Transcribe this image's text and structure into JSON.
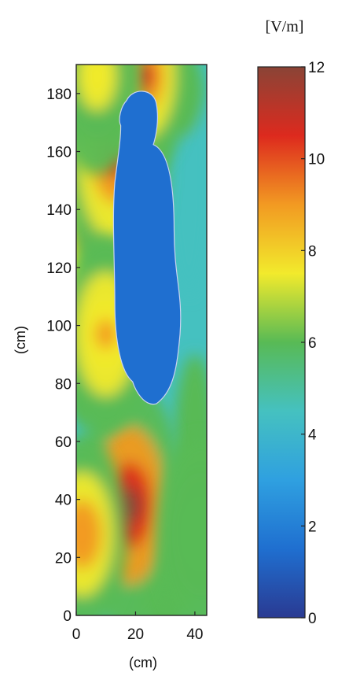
{
  "chart_data": {
    "type": "heatmap",
    "xlabel": "(cm)",
    "ylabel": "(cm)",
    "xlim": [
      0,
      44
    ],
    "ylim": [
      0,
      190
    ],
    "x_ticks": [
      0,
      20,
      40
    ],
    "y_ticks": [
      0,
      20,
      40,
      60,
      80,
      100,
      120,
      140,
      160,
      180
    ],
    "colorbar": {
      "label": "[V/m]",
      "range": [
        0,
        12
      ],
      "ticks": [
        0,
        2,
        4,
        6,
        8,
        10,
        12
      ]
    },
    "field_features": [
      {
        "kind": "peak",
        "x": 18,
        "y": 38,
        "value": 11.5
      },
      {
        "kind": "peak",
        "x": 2,
        "y": 28,
        "value": 9.5
      },
      {
        "kind": "peak",
        "x": 4,
        "y": 130,
        "value": 9
      },
      {
        "kind": "peak",
        "x": 13,
        "y": 157,
        "value": 10.5
      },
      {
        "kind": "peak",
        "x": 23,
        "y": 186,
        "value": 10
      },
      {
        "kind": "peak",
        "x": 7,
        "y": 186,
        "value": 8
      },
      {
        "kind": "peak",
        "x": 42,
        "y": 28,
        "value": 6.5
      },
      {
        "kind": "peak",
        "x": 10,
        "y": 97,
        "value": 8.5
      }
    ],
    "body_region_value": 1,
    "body_region_y_range": [
      73,
      182
    ]
  },
  "colors": {
    "colormap": [
      "#2a3a92",
      "#1f6fd0",
      "#2fa0e0",
      "#45c1c0",
      "#58ba55",
      "#f2ea2c",
      "#f29a22",
      "#dd2a1e",
      "#8a4436"
    ],
    "body_outline": "#c9d4ef"
  }
}
